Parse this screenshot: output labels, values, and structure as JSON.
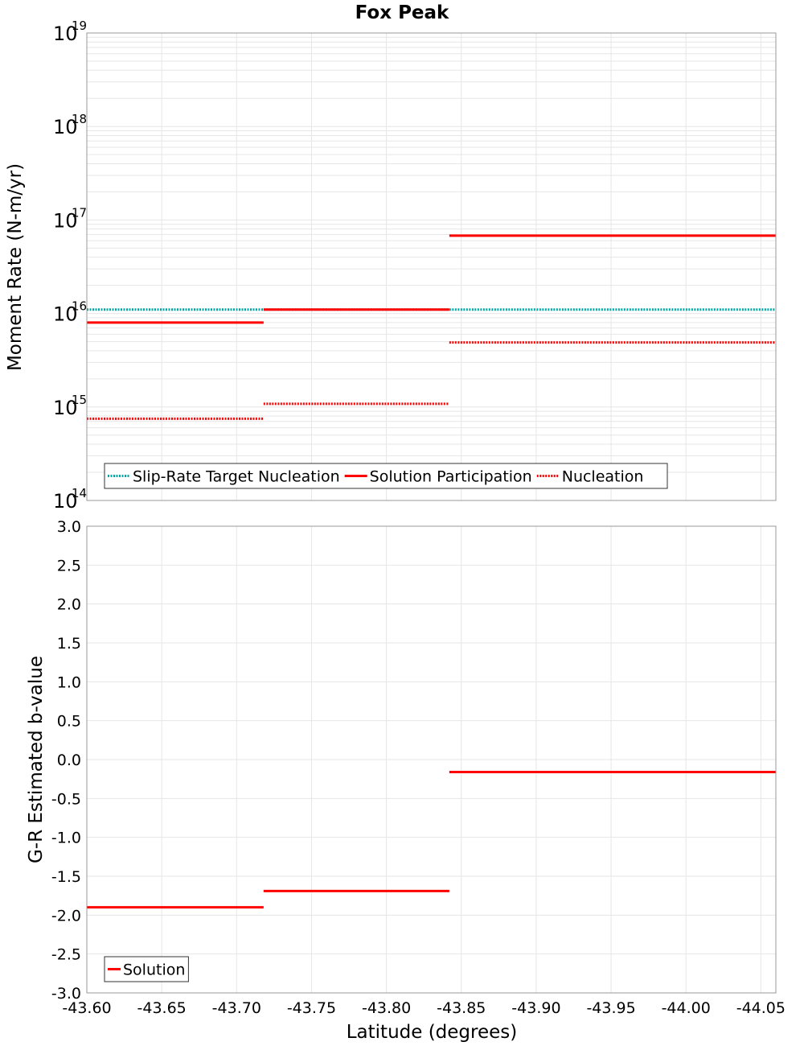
{
  "chart_data": [
    {
      "type": "line",
      "title": "Fox Peak",
      "ylabel": "Moment Rate (N-m/yr)",
      "xlabel": "",
      "y_scale": "log",
      "xlim": [
        -43.6,
        -44.06
      ],
      "ylim": [
        100000000000000.0,
        1e+19
      ],
      "y_ticks": [
        {
          "base": "10",
          "exp": "19"
        },
        {
          "base": "10",
          "exp": "18"
        },
        {
          "base": "10",
          "exp": "17"
        },
        {
          "base": "10",
          "exp": "16"
        },
        {
          "base": "10",
          "exp": "15"
        },
        {
          "base": "10",
          "exp": "14"
        }
      ],
      "grid": true,
      "legend_position": "bottom-left",
      "series": [
        {
          "name": "Slip-Rate Target Nucleation",
          "color": "#00a8a8",
          "style": "dotted",
          "segments": [
            {
              "x": [
                -43.6,
                -43.718
              ],
              "y": 1.1e+16
            },
            {
              "x": [
                -43.718,
                -43.842
              ],
              "y": 1.1e+16
            },
            {
              "x": [
                -43.842,
                -44.06
              ],
              "y": 1.1e+16
            }
          ]
        },
        {
          "name": "Solution Participation",
          "color": "#ff0000",
          "style": "solid",
          "segments": [
            {
              "x": [
                -43.6,
                -43.718
              ],
              "y": 8000000000000000.0
            },
            {
              "x": [
                -43.718,
                -43.842
              ],
              "y": 1.1e+16
            },
            {
              "x": [
                -43.842,
                -44.06
              ],
              "y": 6.8e+16
            }
          ]
        },
        {
          "name": "Nucleation",
          "color": "#ff0000",
          "style": "dotted",
          "segments": [
            {
              "x": [
                -43.6,
                -43.718
              ],
              "y": 750000000000000.0
            },
            {
              "x": [
                -43.718,
                -43.842
              ],
              "y": 1080000000000000.0
            },
            {
              "x": [
                -43.842,
                -44.06
              ],
              "y": 4900000000000000.0
            }
          ]
        }
      ]
    },
    {
      "type": "line",
      "title": "",
      "ylabel": "G-R Estimated b-value",
      "xlabel": "Latitude (degrees)",
      "xlim": [
        -43.6,
        -44.06
      ],
      "ylim": [
        -3.0,
        3.0
      ],
      "x_ticks": [
        -43.6,
        -43.65,
        -43.7,
        -43.75,
        -43.8,
        -43.85,
        -43.9,
        -43.95,
        -44.0,
        -44.05
      ],
      "x_tick_labels": [
        "-43.60",
        "-43.65",
        "-43.70",
        "-43.75",
        "-43.80",
        "-43.85",
        "-43.90",
        "-43.95",
        "-44.00",
        "-44.05"
      ],
      "y_ticks": [
        3.0,
        2.5,
        2.0,
        1.5,
        1.0,
        0.5,
        0.0,
        -0.5,
        -1.0,
        -1.5,
        -2.0,
        -2.5,
        -3.0
      ],
      "y_tick_labels": [
        "3.0",
        "2.5",
        "2.0",
        "1.5",
        "1.0",
        "0.5",
        "0.0",
        "-0.5",
        "-1.0",
        "-1.5",
        "-2.0",
        "-2.5",
        "-3.0"
      ],
      "grid": true,
      "legend_position": "bottom-left",
      "series": [
        {
          "name": "Solution",
          "color": "#ff0000",
          "style": "solid",
          "segments": [
            {
              "x": [
                -43.6,
                -43.718
              ],
              "y": -1.9
            },
            {
              "x": [
                -43.718,
                -43.842
              ],
              "y": -1.69
            },
            {
              "x": [
                -43.842,
                -44.06
              ],
              "y": -0.16
            }
          ]
        }
      ]
    }
  ]
}
